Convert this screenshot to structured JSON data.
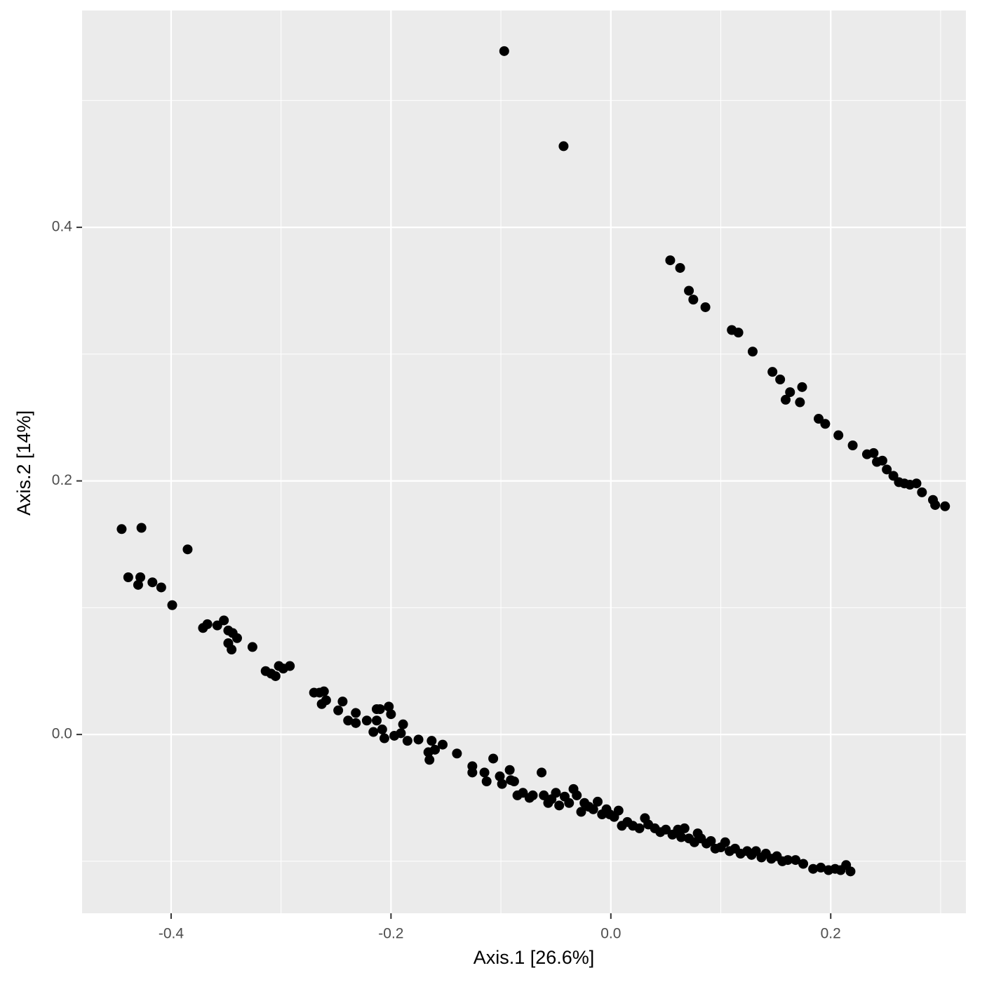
{
  "chart_data": {
    "type": "scatter",
    "x_label": "Axis.1   [26.6%]",
    "y_label": "Axis.2   [14%]",
    "color": "#000000",
    "grid": true,
    "panel_color": "#ebebeb",
    "xlim": [
      -0.481,
      0.323
    ],
    "ylim": [
      -0.141,
      0.571
    ],
    "xticks": [
      -0.4,
      -0.2,
      {
        "value": 0,
        "label": "0.0"
      },
      0.2
    ],
    "yticks": [
      {
        "value": 0,
        "label": "0.0"
      },
      0.2,
      0.4
    ],
    "x_minor_breaks": [
      -0.3,
      -0.1,
      0.1,
      0.3
    ],
    "y_minor_breaks": [
      -0.1,
      0.1,
      0.3,
      0.5
    ],
    "x": [
      -0.097,
      -0.043,
      0.054,
      0.063,
      0.071,
      0.075,
      0.086,
      0.11,
      0.116,
      0.129,
      0.147,
      0.154,
      0.163,
      0.174,
      0.159,
      0.172,
      0.189,
      0.195,
      0.207,
      0.22,
      0.233,
      0.239,
      0.242,
      0.247,
      0.251,
      0.257,
      0.262,
      0.267,
      0.272,
      0.278,
      0.283,
      0.293,
      0.295,
      0.304,
      -0.445,
      -0.427,
      -0.385,
      -0.439,
      -0.428,
      -0.43,
      -0.417,
      -0.409,
      -0.399,
      -0.371,
      -0.367,
      -0.358,
      -0.352,
      -0.348,
      -0.344,
      -0.34,
      -0.348,
      -0.345,
      -0.326,
      -0.314,
      -0.309,
      -0.305,
      -0.302,
      -0.298,
      -0.292,
      -0.27,
      -0.265,
      -0.261,
      -0.263,
      -0.259,
      -0.248,
      -0.244,
      -0.239,
      -0.232,
      -0.232,
      -0.222,
      -0.216,
      -0.213,
      -0.21,
      -0.202,
      -0.206,
      -0.208,
      -0.213,
      -0.2,
      -0.197,
      -0.191,
      -0.189,
      -0.185,
      -0.175,
      -0.166,
      -0.163,
      -0.16,
      -0.165,
      -0.153,
      -0.14,
      -0.126,
      -0.126,
      -0.115,
      -0.113,
      -0.107,
      -0.101,
      -0.099,
      -0.092,
      -0.091,
      -0.088,
      -0.085,
      -0.08,
      -0.074,
      -0.071,
      -0.063,
      -0.061,
      -0.057,
      -0.054,
      -0.05,
      -0.047,
      -0.042,
      -0.038,
      -0.034,
      -0.031,
      -0.027,
      -0.024,
      -0.02,
      -0.016,
      -0.012,
      -0.008,
      -0.004,
      -0.001,
      0.003,
      0.007,
      0.01,
      0.015,
      0.02,
      0.026,
      0.031,
      0.034,
      0.04,
      0.045,
      0.05,
      0.056,
      0.061,
      0.064,
      0.067,
      0.071,
      0.076,
      0.079,
      0.082,
      0.087,
      0.091,
      0.095,
      0.1,
      0.104,
      0.108,
      0.113,
      0.118,
      0.124,
      0.128,
      0.132,
      0.137,
      0.141,
      0.146,
      0.151,
      0.156,
      0.161,
      0.168,
      0.175,
      0.184,
      0.191,
      0.198,
      0.204,
      0.209,
      0.214,
      0.218
    ],
    "values": [
      0.539,
      0.464,
      0.374,
      0.368,
      0.35,
      0.343,
      0.337,
      0.319,
      0.317,
      0.302,
      0.286,
      0.28,
      0.27,
      0.274,
      0.264,
      0.262,
      0.249,
      0.245,
      0.236,
      0.228,
      0.221,
      0.222,
      0.215,
      0.216,
      0.209,
      0.204,
      0.199,
      0.198,
      0.197,
      0.198,
      0.191,
      0.185,
      0.181,
      0.18,
      0.162,
      0.163,
      0.146,
      0.124,
      0.124,
      0.118,
      0.12,
      0.116,
      0.102,
      0.084,
      0.087,
      0.086,
      0.09,
      0.082,
      0.08,
      0.076,
      0.072,
      0.067,
      0.069,
      0.05,
      0.048,
      0.046,
      0.054,
      0.052,
      0.054,
      0.033,
      0.033,
      0.034,
      0.024,
      0.027,
      0.019,
      0.026,
      0.011,
      0.017,
      0.009,
      0.011,
      0.002,
      0.02,
      0.02,
      0.022,
      -0.003,
      0.004,
      0.011,
      0.016,
      -0.001,
      0.001,
      0.008,
      -0.005,
      -0.004,
      -0.014,
      -0.005,
      -0.012,
      -0.02,
      -0.008,
      -0.015,
      -0.025,
      -0.03,
      -0.03,
      -0.037,
      -0.019,
      -0.033,
      -0.039,
      -0.028,
      -0.036,
      -0.037,
      -0.048,
      -0.046,
      -0.05,
      -0.048,
      -0.03,
      -0.048,
      -0.054,
      -0.051,
      -0.046,
      -0.056,
      -0.049,
      -0.054,
      -0.043,
      -0.048,
      -0.061,
      -0.054,
      -0.057,
      -0.059,
      -0.053,
      -0.063,
      -0.059,
      -0.063,
      -0.065,
      -0.06,
      -0.072,
      -0.069,
      -0.072,
      -0.074,
      -0.066,
      -0.071,
      -0.074,
      -0.077,
      -0.075,
      -0.079,
      -0.075,
      -0.081,
      -0.074,
      -0.082,
      -0.085,
      -0.078,
      -0.082,
      -0.086,
      -0.084,
      -0.09,
      -0.089,
      -0.085,
      -0.092,
      -0.09,
      -0.094,
      -0.092,
      -0.095,
      -0.092,
      -0.097,
      -0.094,
      -0.098,
      -0.096,
      -0.1,
      -0.099,
      -0.099,
      -0.102,
      -0.106,
      -0.105,
      -0.107,
      -0.106,
      -0.107,
      -0.103,
      -0.108
    ]
  }
}
